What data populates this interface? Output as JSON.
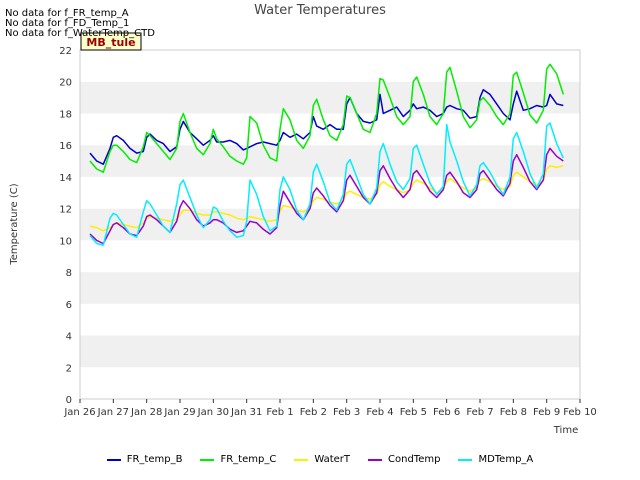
{
  "notices": [
    "No data for f_FR_temp_A",
    "No data for f_FD_Temp_1",
    "No data for f_WaterTemp_CTD"
  ],
  "chart_data": {
    "type": "line",
    "title": "Water Temperatures",
    "xlabel": "Time",
    "ylabel": "Temperature (C)",
    "xlim": [
      0,
      15
    ],
    "ylim": [
      0,
      22
    ],
    "yticks": [
      0,
      2,
      4,
      6,
      8,
      10,
      12,
      14,
      16,
      18,
      20,
      22
    ],
    "xtick_labels": [
      "Jan 26",
      "Jan 27",
      "Jan 28",
      "Jan 29",
      "Jan 30",
      "Jan 31",
      "Feb 1",
      "Feb 2",
      "Feb 3",
      "Feb 4",
      "Feb 5",
      "Feb 6",
      "Feb 7",
      "Feb 8",
      "Feb 9",
      "Feb 10"
    ],
    "grid": "horizontal bands",
    "badge": "MB_tule",
    "legend_position": "bottom",
    "series": [
      {
        "name": "FR_temp_B",
        "color": "#0000cc",
        "x": [
          0.3,
          0.5,
          0.7,
          0.9,
          1.0,
          1.1,
          1.3,
          1.5,
          1.7,
          1.9,
          2.0,
          2.1,
          2.3,
          2.5,
          2.7,
          2.9,
          3.0,
          3.1,
          3.3,
          3.5,
          3.7,
          3.9,
          4.0,
          4.1,
          4.3,
          4.5,
          4.7,
          4.9,
          5.0,
          5.1,
          5.3,
          5.5,
          5.7,
          5.9,
          6.0,
          6.1,
          6.3,
          6.5,
          6.7,
          6.9,
          7.0,
          7.1,
          7.3,
          7.5,
          7.7,
          7.9,
          8.0,
          8.1,
          8.3,
          8.5,
          8.7,
          8.9,
          9.0,
          9.1,
          9.3,
          9.5,
          9.7,
          9.9,
          10.0,
          10.1,
          10.3,
          10.5,
          10.7,
          10.9,
          11.0,
          11.1,
          11.3,
          11.5,
          11.7,
          11.9,
          12.0,
          12.1,
          12.3,
          12.5,
          12.7,
          12.9,
          13.0,
          13.1,
          13.3,
          13.5,
          13.7,
          13.9,
          14.0,
          14.1,
          14.3,
          14.5
        ],
        "y": [
          15.5,
          15.0,
          14.8,
          15.8,
          16.5,
          16.6,
          16.3,
          15.8,
          15.5,
          15.6,
          16.5,
          16.7,
          16.3,
          16.1,
          15.6,
          15.9,
          17.0,
          17.5,
          16.8,
          16.4,
          16.0,
          16.3,
          16.6,
          16.2,
          16.2,
          16.3,
          16.1,
          15.7,
          15.8,
          15.9,
          16.1,
          16.2,
          16.1,
          16.0,
          16.3,
          16.8,
          16.5,
          16.7,
          16.4,
          16.8,
          17.8,
          17.2,
          17.0,
          17.3,
          17.0,
          17.0,
          18.6,
          19.0,
          18.0,
          17.5,
          17.4,
          17.6,
          19.2,
          18.0,
          18.2,
          18.4,
          17.8,
          18.2,
          18.6,
          18.3,
          18.4,
          18.2,
          17.8,
          18.0,
          18.4,
          18.5,
          18.3,
          18.2,
          17.7,
          17.8,
          19.0,
          19.5,
          19.2,
          18.6,
          18.0,
          17.6,
          18.6,
          19.4,
          18.2,
          18.3,
          18.5,
          18.4,
          18.5,
          19.2,
          18.6,
          18.5
        ]
      },
      {
        "name": "FR_temp_C",
        "color": "#00ee00",
        "x": [
          0.3,
          0.5,
          0.7,
          0.9,
          1.0,
          1.1,
          1.3,
          1.5,
          1.7,
          1.9,
          2.0,
          2.1,
          2.3,
          2.5,
          2.7,
          2.9,
          3.0,
          3.1,
          3.3,
          3.5,
          3.7,
          3.9,
          4.0,
          4.1,
          4.3,
          4.5,
          4.7,
          4.9,
          5.0,
          5.1,
          5.3,
          5.5,
          5.7,
          5.9,
          6.0,
          6.1,
          6.3,
          6.5,
          6.7,
          6.9,
          7.0,
          7.1,
          7.3,
          7.5,
          7.7,
          7.9,
          8.0,
          8.1,
          8.3,
          8.5,
          8.7,
          8.9,
          9.0,
          9.1,
          9.3,
          9.5,
          9.7,
          9.9,
          10.0,
          10.1,
          10.3,
          10.5,
          10.7,
          10.9,
          11.0,
          11.1,
          11.3,
          11.5,
          11.7,
          11.9,
          12.0,
          12.1,
          12.3,
          12.5,
          12.7,
          12.9,
          13.0,
          13.1,
          13.3,
          13.5,
          13.7,
          13.9,
          14.0,
          14.1,
          14.3,
          14.5
        ],
        "y": [
          15.0,
          14.5,
          14.3,
          15.6,
          16.0,
          16.0,
          15.6,
          15.1,
          14.9,
          15.9,
          16.8,
          16.6,
          16.1,
          15.6,
          15.1,
          15.8,
          17.5,
          18.0,
          16.8,
          15.8,
          15.4,
          16.1,
          17.0,
          16.4,
          15.9,
          15.3,
          15.0,
          14.8,
          15.2,
          17.8,
          17.4,
          16.0,
          15.2,
          15.0,
          17.0,
          18.3,
          17.6,
          16.3,
          15.8,
          16.6,
          18.5,
          18.9,
          17.6,
          16.6,
          16.3,
          17.3,
          19.1,
          19.0,
          18.0,
          17.0,
          16.8,
          18.0,
          20.2,
          20.1,
          19.0,
          17.8,
          17.3,
          17.8,
          20.0,
          20.3,
          19.2,
          17.8,
          17.3,
          18.0,
          20.6,
          20.9,
          19.4,
          17.8,
          17.1,
          17.6,
          18.8,
          19.0,
          18.5,
          17.8,
          17.3,
          18.0,
          20.4,
          20.6,
          19.3,
          17.9,
          17.4,
          18.2,
          20.8,
          21.1,
          20.5,
          19.2
        ]
      },
      {
        "name": "WaterT",
        "color": "#ffee00",
        "x": [
          0.3,
          0.5,
          0.7,
          0.9,
          1.0,
          1.1,
          1.3,
          1.5,
          1.7,
          1.9,
          2.0,
          2.1,
          2.3,
          2.5,
          2.7,
          2.9,
          3.0,
          3.1,
          3.3,
          3.5,
          3.7,
          3.9,
          4.0,
          4.1,
          4.3,
          4.5,
          4.7,
          4.9,
          5.0,
          5.1,
          5.3,
          5.5,
          5.7,
          5.9,
          6.0,
          6.1,
          6.3,
          6.5,
          6.7,
          6.9,
          7.0,
          7.1,
          7.3,
          7.5,
          7.7,
          7.9,
          8.0,
          8.1,
          8.3,
          8.5,
          8.7,
          8.9,
          9.0,
          9.1,
          9.3,
          9.5,
          9.7,
          9.9,
          10.0,
          10.1,
          10.3,
          10.5,
          10.7,
          10.9,
          11.0,
          11.1,
          11.3,
          11.5,
          11.7,
          11.9,
          12.0,
          12.1,
          12.3,
          12.5,
          12.7,
          12.9,
          13.0,
          13.1,
          13.3,
          13.5,
          13.7,
          13.9,
          14.0,
          14.1,
          14.3,
          14.5
        ],
        "y": [
          10.9,
          10.8,
          10.6,
          10.8,
          11.0,
          11.1,
          11.0,
          10.9,
          10.8,
          11.1,
          11.4,
          11.5,
          11.4,
          11.3,
          11.2,
          11.3,
          11.6,
          11.9,
          11.9,
          11.7,
          11.6,
          11.6,
          11.8,
          11.8,
          11.7,
          11.6,
          11.4,
          11.3,
          11.4,
          11.5,
          11.4,
          11.3,
          11.2,
          11.3,
          11.8,
          12.2,
          12.1,
          11.9,
          11.8,
          12.0,
          12.5,
          12.7,
          12.6,
          12.4,
          12.3,
          12.5,
          13.0,
          13.1,
          12.9,
          12.7,
          12.6,
          12.9,
          13.5,
          13.7,
          13.4,
          13.2,
          13.0,
          13.2,
          13.6,
          13.8,
          13.6,
          13.3,
          13.0,
          13.2,
          13.7,
          13.9,
          13.6,
          13.3,
          13.1,
          13.3,
          13.8,
          13.9,
          13.7,
          13.4,
          13.2,
          13.4,
          14.1,
          14.3,
          14.0,
          13.7,
          13.5,
          13.8,
          14.5,
          14.7,
          14.6,
          14.7
        ]
      },
      {
        "name": "CondTemp",
        "color": "#9900cc",
        "x": [
          0.3,
          0.5,
          0.7,
          0.9,
          1.0,
          1.1,
          1.3,
          1.5,
          1.7,
          1.9,
          2.0,
          2.1,
          2.3,
          2.5,
          2.7,
          2.9,
          3.0,
          3.1,
          3.3,
          3.5,
          3.7,
          3.9,
          4.0,
          4.1,
          4.3,
          4.5,
          4.7,
          4.9,
          5.0,
          5.1,
          5.3,
          5.5,
          5.7,
          5.9,
          6.0,
          6.1,
          6.3,
          6.5,
          6.7,
          6.9,
          7.0,
          7.1,
          7.3,
          7.5,
          7.7,
          7.9,
          8.0,
          8.1,
          8.3,
          8.5,
          8.7,
          8.9,
          9.0,
          9.1,
          9.3,
          9.5,
          9.7,
          9.9,
          10.0,
          10.1,
          10.3,
          10.5,
          10.7,
          10.9,
          11.0,
          11.1,
          11.3,
          11.5,
          11.7,
          11.9,
          12.0,
          12.1,
          12.3,
          12.5,
          12.7,
          12.9,
          13.0,
          13.1,
          13.3,
          13.5,
          13.7,
          13.9,
          14.0,
          14.1,
          14.3,
          14.5
        ],
        "y": [
          10.4,
          10.0,
          9.8,
          10.6,
          11.0,
          11.1,
          10.8,
          10.4,
          10.3,
          10.9,
          11.5,
          11.6,
          11.3,
          10.9,
          10.5,
          11.2,
          12.1,
          12.5,
          12.0,
          11.3,
          10.9,
          11.1,
          11.3,
          11.3,
          11.1,
          10.7,
          10.5,
          10.6,
          10.9,
          11.2,
          11.1,
          10.7,
          10.4,
          10.8,
          12.2,
          13.1,
          12.4,
          11.7,
          11.3,
          12.0,
          13.0,
          13.3,
          12.8,
          12.2,
          11.8,
          12.5,
          13.8,
          14.1,
          13.4,
          12.7,
          12.3,
          13.0,
          14.4,
          14.7,
          13.9,
          13.2,
          12.7,
          13.2,
          14.2,
          14.4,
          13.8,
          13.1,
          12.7,
          13.2,
          14.1,
          14.3,
          13.7,
          13.0,
          12.7,
          13.2,
          14.2,
          14.4,
          13.8,
          13.2,
          12.8,
          13.6,
          15.0,
          15.4,
          14.6,
          13.7,
          13.2,
          13.8,
          15.4,
          15.8,
          15.3,
          15.0
        ]
      },
      {
        "name": "MDTemp_A",
        "color": "#00eeff",
        "x": [
          0.3,
          0.5,
          0.7,
          0.9,
          1.0,
          1.1,
          1.3,
          1.5,
          1.7,
          1.9,
          2.0,
          2.1,
          2.3,
          2.5,
          2.7,
          2.9,
          3.0,
          3.1,
          3.3,
          3.5,
          3.7,
          3.9,
          4.0,
          4.1,
          4.3,
          4.5,
          4.7,
          4.9,
          5.0,
          5.1,
          5.3,
          5.5,
          5.7,
          5.9,
          6.0,
          6.1,
          6.3,
          6.5,
          6.7,
          6.9,
          7.0,
          7.1,
          7.3,
          7.5,
          7.7,
          7.9,
          8.0,
          8.1,
          8.3,
          8.5,
          8.7,
          8.9,
          9.0,
          9.1,
          9.3,
          9.5,
          9.7,
          9.9,
          10.0,
          10.1,
          10.3,
          10.5,
          10.7,
          10.9,
          11.0,
          11.1,
          11.3,
          11.5,
          11.7,
          11.9,
          12.0,
          12.1,
          12.3,
          12.5,
          12.7,
          12.9,
          13.0,
          13.1,
          13.3,
          13.5,
          13.7,
          13.9,
          14.0,
          14.1,
          14.3,
          14.5
        ],
        "y": [
          10.3,
          9.8,
          9.7,
          11.4,
          11.7,
          11.6,
          11.0,
          10.4,
          10.2,
          11.8,
          12.5,
          12.3,
          11.6,
          10.9,
          10.5,
          12.3,
          13.5,
          13.8,
          12.7,
          11.6,
          10.8,
          11.3,
          12.1,
          12.0,
          11.2,
          10.6,
          10.2,
          10.3,
          11.2,
          13.8,
          12.9,
          11.5,
          10.6,
          10.9,
          13.2,
          14.0,
          13.2,
          11.9,
          11.3,
          12.3,
          14.3,
          14.8,
          13.7,
          12.4,
          11.9,
          12.9,
          14.8,
          15.1,
          14.0,
          12.9,
          12.3,
          13.3,
          15.6,
          16.1,
          14.8,
          13.7,
          13.2,
          13.9,
          15.8,
          16.0,
          14.8,
          13.6,
          12.9,
          13.4,
          17.3,
          16.2,
          15.0,
          13.7,
          12.8,
          13.5,
          14.7,
          14.9,
          14.3,
          13.5,
          12.9,
          14.0,
          16.4,
          16.8,
          15.6,
          14.2,
          13.3,
          14.2,
          17.2,
          17.4,
          16.1,
          15.2
        ]
      }
    ]
  }
}
